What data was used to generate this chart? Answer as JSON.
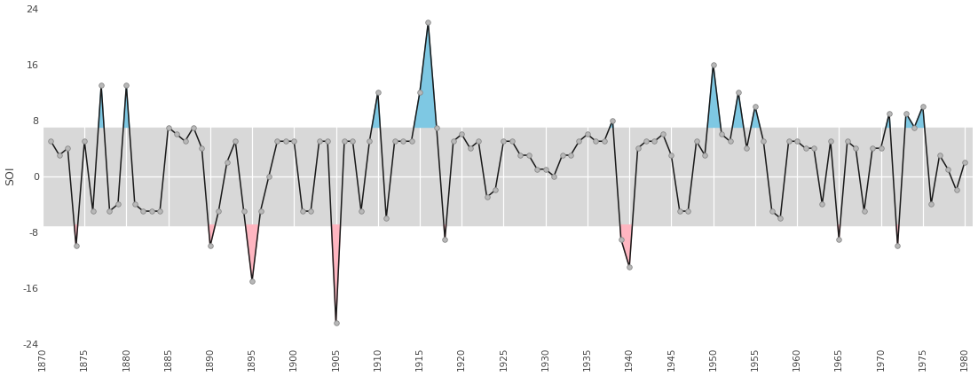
{
  "ylabel": "SOI",
  "xlim": [
    1870,
    1981
  ],
  "ylim": [
    -24,
    24
  ],
  "yticks": [
    -24,
    -16,
    -8,
    0,
    8,
    16,
    24
  ],
  "xticks": [
    1870,
    1875,
    1880,
    1885,
    1890,
    1895,
    1900,
    1905,
    1910,
    1915,
    1920,
    1925,
    1930,
    1935,
    1940,
    1945,
    1950,
    1955,
    1960,
    1965,
    1970,
    1975,
    1980
  ],
  "band_low": -7,
  "band_high": 7,
  "band_color": "#d8d8d8",
  "line_color": "#1a1a1a",
  "marker_facecolor": "#b8b8b8",
  "marker_edgecolor": "#888888",
  "fill_above_color": "#7ec8e3",
  "fill_below_color": "#ffb6c1",
  "threshold_high": 7,
  "threshold_low": -7,
  "background_color": "#ffffff",
  "grid_color": "#ffffff",
  "years": [
    1871,
    1872,
    1873,
    1874,
    1875,
    1876,
    1877,
    1878,
    1879,
    1880,
    1881,
    1882,
    1883,
    1884,
    1885,
    1886,
    1887,
    1888,
    1889,
    1890,
    1891,
    1892,
    1893,
    1894,
    1895,
    1896,
    1897,
    1898,
    1899,
    1900,
    1901,
    1902,
    1903,
    1904,
    1905,
    1906,
    1907,
    1908,
    1909,
    1910,
    1911,
    1912,
    1913,
    1914,
    1915,
    1916,
    1917,
    1918,
    1919,
    1920,
    1921,
    1922,
    1923,
    1924,
    1925,
    1926,
    1927,
    1928,
    1929,
    1930,
    1931,
    1932,
    1933,
    1934,
    1935,
    1936,
    1937,
    1938,
    1939,
    1940,
    1941,
    1942,
    1943,
    1944,
    1945,
    1946,
    1947,
    1948,
    1949,
    1950,
    1951,
    1952,
    1953,
    1954,
    1955,
    1956,
    1957,
    1958,
    1959,
    1960,
    1961,
    1962,
    1963,
    1964,
    1965,
    1966,
    1967,
    1968,
    1969,
    1970,
    1971,
    1972,
    1973,
    1974,
    1975,
    1976,
    1977,
    1978,
    1979,
    1980
  ],
  "soi": [
    5,
    3,
    4,
    -10,
    5,
    -5,
    13,
    -5,
    -4,
    13,
    -4,
    -5,
    -5,
    -5,
    7,
    6,
    5,
    7,
    4,
    -10,
    -5,
    2,
    5,
    -5,
    -15,
    -5,
    0,
    5,
    5,
    5,
    -5,
    -5,
    5,
    5,
    -21,
    5,
    5,
    -5,
    5,
    12,
    -6,
    5,
    5,
    5,
    12,
    22,
    7,
    -9,
    5,
    6,
    4,
    5,
    -3,
    -2,
    5,
    5,
    3,
    3,
    1,
    1,
    0,
    3,
    3,
    5,
    6,
    5,
    5,
    8,
    -9,
    -13,
    4,
    5,
    5,
    6,
    3,
    -5,
    -5,
    5,
    3,
    16,
    6,
    5,
    12,
    4,
    10,
    5,
    -5,
    -6,
    5,
    5,
    4,
    4,
    -4,
    5,
    -9,
    5,
    4,
    -5,
    4,
    4,
    9,
    -10,
    9,
    7,
    10,
    -4,
    3,
    1,
    -2,
    2
  ]
}
